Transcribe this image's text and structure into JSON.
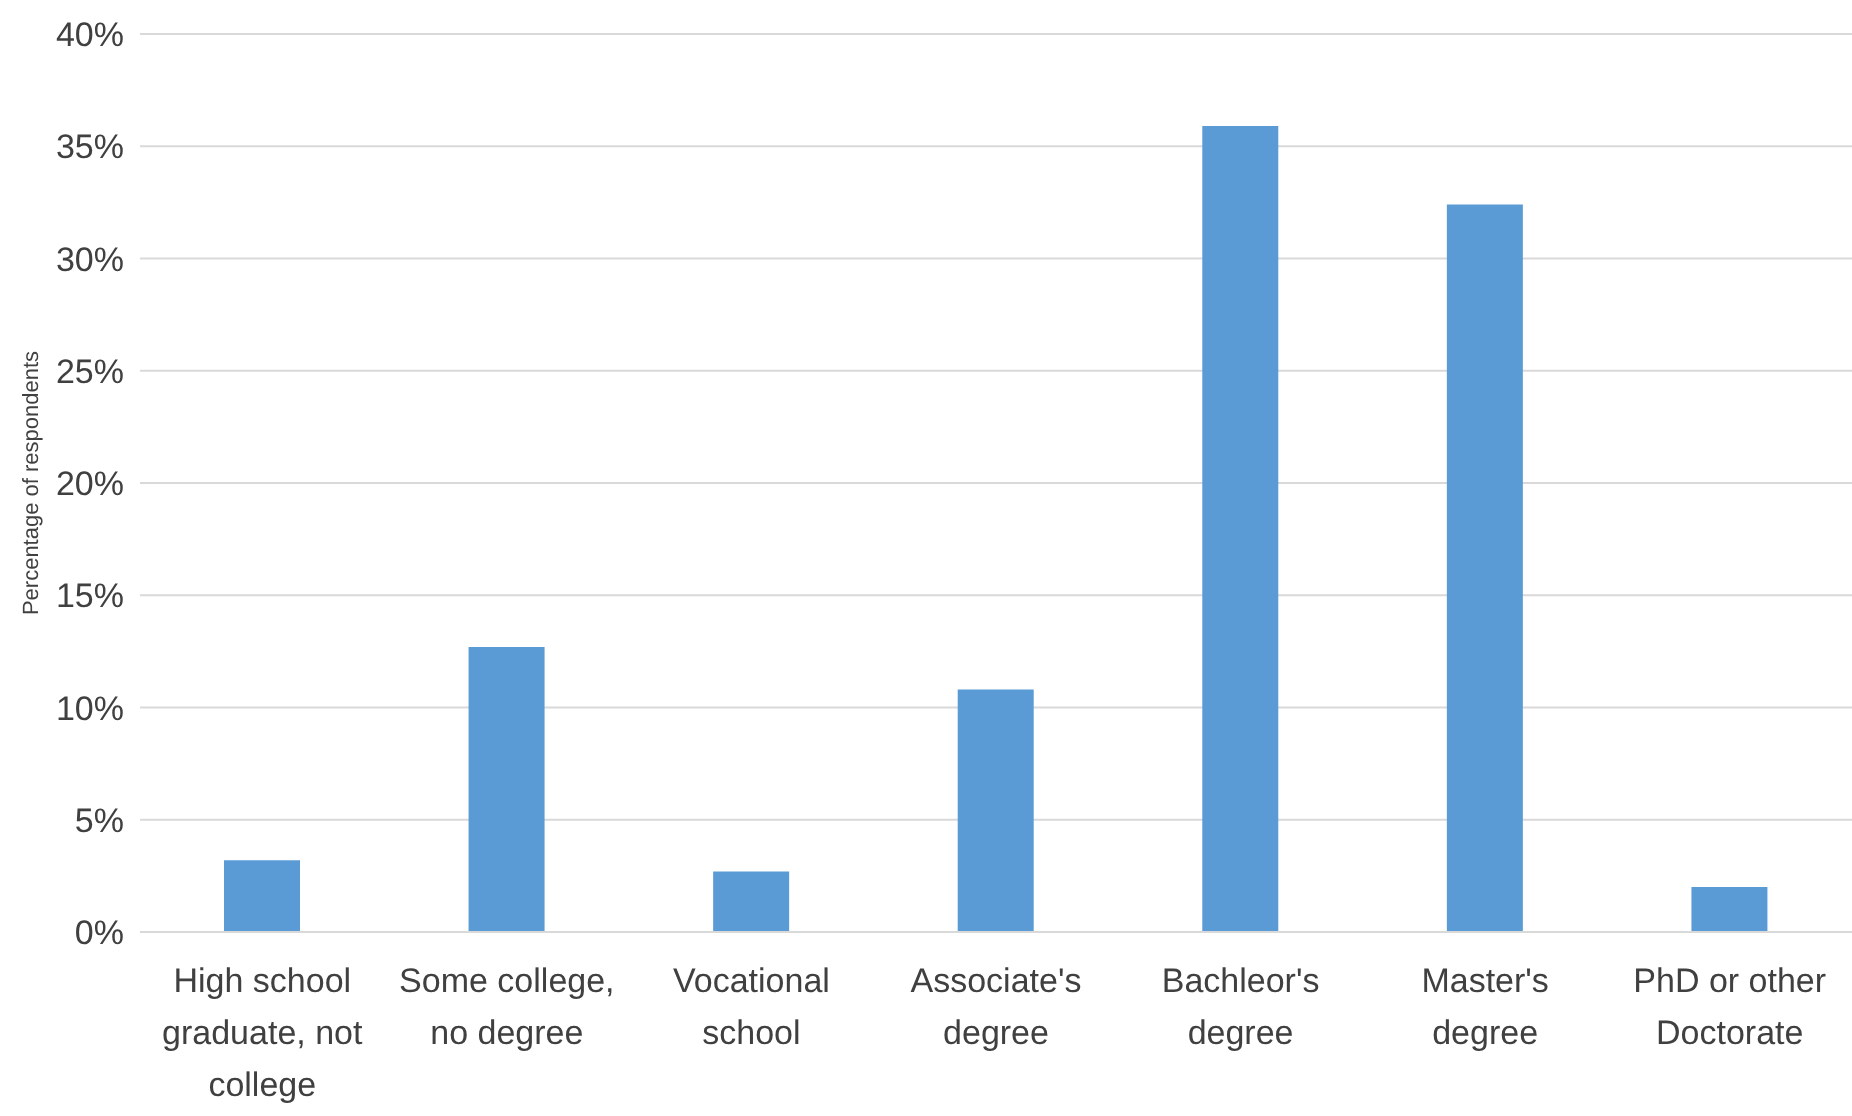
{
  "chart_data": {
    "type": "bar",
    "ylabel": "Percentage of respondents",
    "categories": [
      "High school graduate, not college",
      "Some college, no degree",
      "Vocational school",
      "Associate's degree",
      "Bachleor's degree",
      "Master's degree",
      "PhD or other Doctorate"
    ],
    "values": [
      3.2,
      12.7,
      2.7,
      10.8,
      35.9,
      32.4,
      2.0
    ],
    "color": "#5b9bd5",
    "ylim": [
      0,
      40
    ],
    "yticks": [
      {
        "value": 0,
        "label": "0%"
      },
      {
        "value": 5,
        "label": "5%"
      },
      {
        "value": 10,
        "label": "10%"
      },
      {
        "value": 15,
        "label": "15%"
      },
      {
        "value": 20,
        "label": "20%"
      },
      {
        "value": 25,
        "label": "25%"
      },
      {
        "value": 30,
        "label": "30%"
      },
      {
        "value": 35,
        "label": "35%"
      },
      {
        "value": 40,
        "label": "40%"
      }
    ],
    "grid": "y",
    "legend": false
  }
}
